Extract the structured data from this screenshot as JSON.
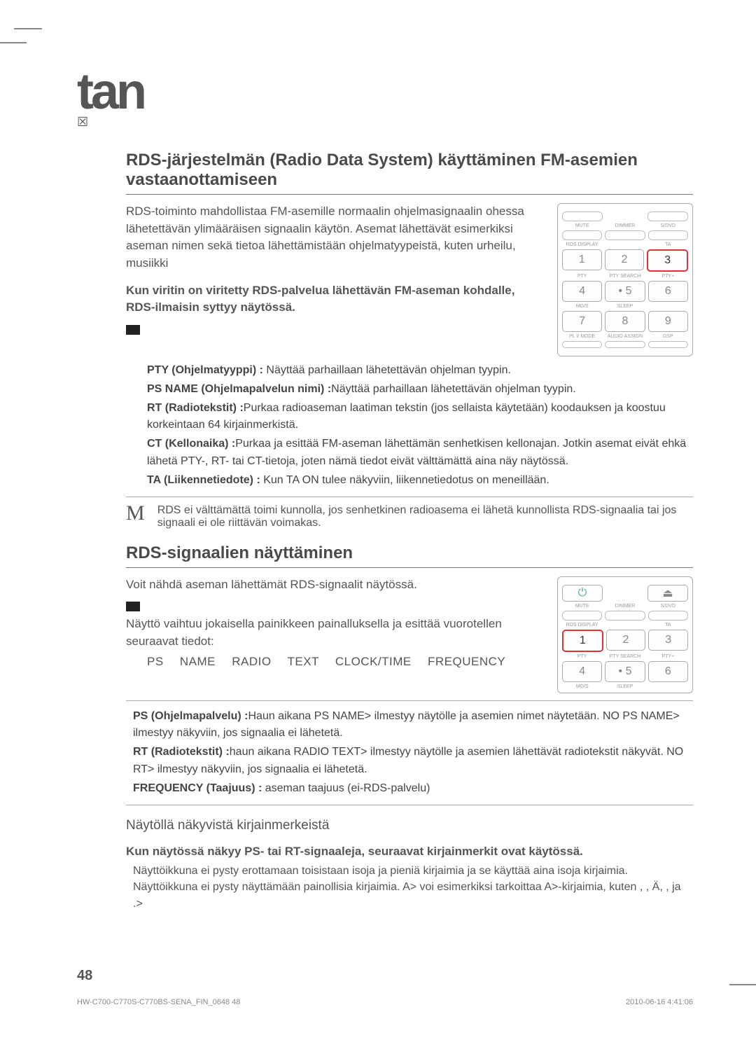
{
  "tab_title": "tan",
  "tab_glyph": "☒",
  "section1": {
    "title": "RDS-järjestelmän (Radio Data System) käyttäminen FM-asemien vastaanottamiseen",
    "para": "RDS-toiminto mahdollistaa FM-asemille normaalin ohjelmasignaalin ohessa lähetettävän ylimääräisen signaalin käytön. Asemat lähettävät esimerkiksi aseman nimen sekä tietoa lähettämistään ohjelmatyypeistä, kuten urheilu, musiikki",
    "bold_line": "Kun viritin on viritetty RDS-palvelua lähettävän FM-aseman kohdalle, RDS-ilmaisin syttyy näytössä.",
    "defs": [
      {
        "label": "PTY (Ohjelmatyyppi) :",
        "text": " Näyttää parhaillaan lähetettävän ohjelman tyypin."
      },
      {
        "label": "PS NAME (Ohjelmapalvelun nimi) :",
        "text": "Näyttää parhaillaan lähetettävän ohjelman tyypin."
      },
      {
        "label": "RT (Radiotekstit) :",
        "text": "Purkaa radioaseman laatiman tekstin (jos sellaista käytetään) koodauksen ja koostuu korkeintaan 64 kirjainmerkistä."
      },
      {
        "label": "CT (Kellonaika) :",
        "text": "Purkaa ja esittää FM-aseman lähettämän senhetkisen kellonajan. Jotkin asemat eivät ehkä lähetä PTY-, RT- tai CT-tietoja, joten nämä tiedot eivät välttämättä aina näy näytössä."
      },
      {
        "label": "TA (Liikennetiedote) :",
        "text": " Kun  TA ON  tulee näkyviin, liikennetiedotus on meneillään."
      }
    ],
    "note": "RDS ei välttämättä toimi kunnolla, jos senhetkinen radioasema ei lähetä kunnollista RDS-signaalia tai jos signaali ei ole riittävän voimakas."
  },
  "section2": {
    "title": "RDS-signaalien näyttäminen",
    "intro": "Voit nähdä aseman lähettämät RDS-signaalit näytössä.",
    "press_line": "Näyttö vaihtuu jokaisella painikkeen painalluksella ja esittää vuorotellen seuraavat tiedot:",
    "seq": [
      "PS NAME",
      "RADIO TEXT",
      "CLOCK/TIME",
      "FREQUENCY"
    ],
    "defs": [
      {
        "label": "PS (Ohjelmapalvelu) :",
        "text": "Haun aikana  PS NAME> ilmestyy näytölle ja asemien nimet näytetään.  NO PS NAME> ilmestyy näkyviin, jos signaalia ei lähetetä."
      },
      {
        "label": "RT (Radiotekstit) :",
        "text": "haun aikana  RADIO TEXT> ilmestyy näytölle ja asemien lähettävät radiotekstit näkyvät.  NO RT> ilmestyy näkyviin, jos signaalia ei lähetetä."
      },
      {
        "label": "FREQUENCY (Taajuus) :",
        "text": " aseman taajuus (ei-RDS-palvelu)"
      }
    ]
  },
  "section3": {
    "heading": "Näytöllä näkyvistä kirjainmerkeistä",
    "bold_line": "Kun näytössä näkyy PS- tai RT-signaaleja, seuraavat kirjainmerkit ovat käytössä.",
    "line1": "Näyttöikkuna ei pysty erottamaan toisistaan isoja ja pieniä kirjaimia ja se käyttää aina isoja kirjaimia.",
    "line2": "Näyttöikkuna ei pysty näyttämään painollisia kirjaimia.  A> voi esimerkiksi tarkoittaa  A>-kirjaimia, kuten  ,  , Ä,  ,  ja  .>"
  },
  "remote1": {
    "row_labels": [
      [
        "MUTE",
        "DIMMER",
        "S/DVD"
      ],
      [
        "RDS DISPLAY",
        "",
        "TA"
      ],
      [
        "PTY",
        "PTY SEARCH",
        "PTY+"
      ],
      [
        "MO/S",
        "SLEEP",
        ""
      ],
      [
        "PL II MODE",
        "AUDIO ASSIGN",
        "DSP"
      ]
    ],
    "keys": [
      [
        "1",
        "2",
        "3"
      ],
      [
        "4",
        "• 5",
        "6"
      ],
      [
        "7",
        "8",
        "9"
      ]
    ],
    "highlight": [
      0,
      2
    ]
  },
  "remote2": {
    "row_labels": [
      [
        "MUTE",
        "DIMMER",
        "S/DVD"
      ],
      [
        "RDS DISPLAY",
        "",
        "TA"
      ],
      [
        "PTY",
        "PTY SEARCH",
        "PTY+"
      ],
      [
        "MO/S",
        "SLEEP",
        ""
      ]
    ],
    "keys": [
      [
        "1",
        "2",
        "3"
      ],
      [
        "4",
        "• 5",
        "6"
      ]
    ],
    "highlight": [
      0,
      0
    ]
  },
  "page_number": "48",
  "footer_left": "HW-C700-C770S-C770BS-SENA_FIN_0648   48",
  "footer_right": "2010-06-16   4:41:06"
}
